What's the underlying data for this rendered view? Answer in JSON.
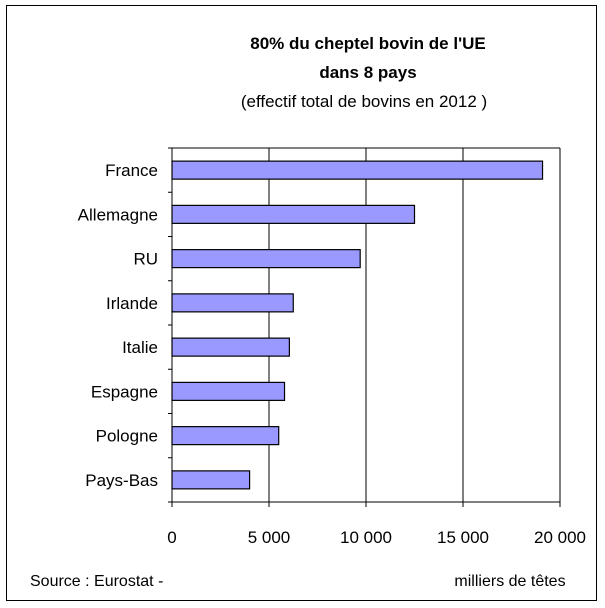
{
  "chart_data": {
    "type": "bar",
    "orientation": "horizontal",
    "title_line1": "80% du cheptel bovin de l'UE",
    "title_line2": "dans 8 pays",
    "subtitle": "(effectif  total de bovins en 2012 )",
    "categories": [
      "France",
      "Allemagne",
      "RU",
      "Irlande",
      "Italie",
      "Espagne",
      "Pologne",
      "Pays-Bas"
    ],
    "values": [
      19100,
      12500,
      9700,
      6250,
      6050,
      5800,
      5500,
      4000
    ],
    "x_ticks": [
      0,
      5000,
      10000,
      15000,
      20000
    ],
    "x_tick_labels": [
      "0",
      "5 000",
      "10 000",
      "15 000",
      "20 000"
    ],
    "xlim": [
      0,
      20000
    ],
    "xlabel": "milliers de têtes",
    "source": "Source : Eurostat -",
    "grid": true,
    "bar_color": "#9999ff"
  }
}
